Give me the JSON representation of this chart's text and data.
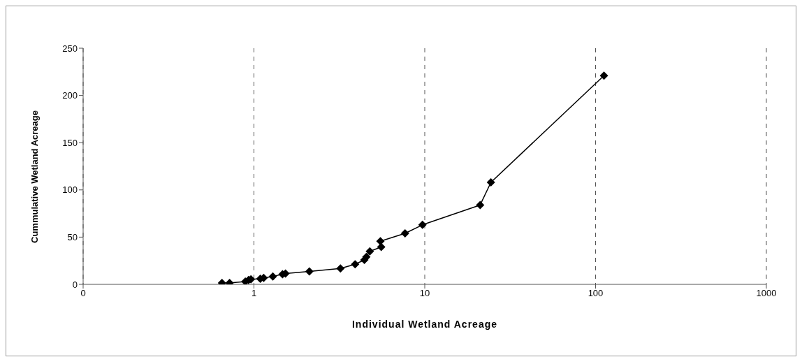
{
  "chart_data": {
    "type": "line",
    "xlabel": "Individual Wetland Acreage",
    "ylabel": "Cummulative Wetland Acreage",
    "x": [
      0.65,
      0.72,
      0.89,
      0.93,
      0.96,
      1.09,
      1.14,
      1.29,
      1.47,
      1.53,
      2.11,
      3.21,
      3.91,
      4.43,
      4.55,
      4.77,
      5.56,
      5.5,
      7.67,
      9.7,
      21.1,
      24.4,
      112
    ],
    "series": [
      {
        "color": "#000000",
        "values": [
          1.5,
          1.5,
          3,
          4.6,
          5.3,
          6,
          6.9,
          8.4,
          10.7,
          11.4,
          13.7,
          16.8,
          21.3,
          25.9,
          29,
          35,
          39.6,
          45.7,
          54,
          63,
          84,
          108,
          221
        ]
      }
    ],
    "log": "x",
    "xlim": [
      0.1,
      1000
    ],
    "xticks": [
      {
        "value": 0.1,
        "label": "0"
      },
      1,
      10,
      100,
      1000
    ],
    "ylim": [
      0,
      250
    ],
    "yticks": [
      0,
      50,
      100,
      150,
      200,
      250
    ],
    "grid": "x",
    "marker": "diamond",
    "line_style": "solid",
    "legend": false
  }
}
